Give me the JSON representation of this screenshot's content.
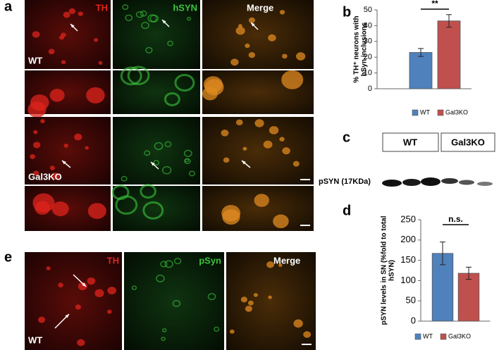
{
  "panel_labels": [
    "a",
    "b",
    "c",
    "d",
    "e"
  ],
  "panel_a": {
    "channels": [
      "TH",
      "hSYN",
      "Merge"
    ],
    "genotypes": [
      "WT",
      "Gal3KO"
    ]
  },
  "panel_c": {
    "groups": [
      "WT",
      "Gal3KO"
    ],
    "band_label": "pSYN (17KDa)"
  },
  "panel_e": {
    "channels": [
      "TH",
      "pSyn",
      "Merge"
    ],
    "genotype": "WT"
  },
  "chart_data": [
    {
      "type": "bar",
      "ylabel": [
        "% TH⁺ neurons with",
        "hSyn inclusions"
      ],
      "categories": [
        "WT",
        "Gal3KO"
      ],
      "values": [
        23,
        43
      ],
      "errors": [
        2.5,
        4
      ],
      "colors": [
        "#4f81bd",
        "#c0504d"
      ],
      "ylim": [
        0,
        50
      ],
      "yticks": [
        0,
        10,
        20,
        30,
        40,
        50
      ],
      "annotation": "**",
      "legend": "bottom"
    },
    {
      "type": "bar",
      "ylabel": [
        "pSYN levels in SN (%fold to total",
        "hSYN)"
      ],
      "categories": [
        "WT",
        "Gal3KO"
      ],
      "values": [
        167,
        118
      ],
      "errors": [
        28,
        15
      ],
      "colors": [
        "#4f81bd",
        "#c0504d"
      ],
      "ylim": [
        0,
        250
      ],
      "yticks": [
        0,
        50,
        100,
        150,
        200,
        250
      ],
      "annotation": "n.s.",
      "legend": "bottom"
    }
  ]
}
